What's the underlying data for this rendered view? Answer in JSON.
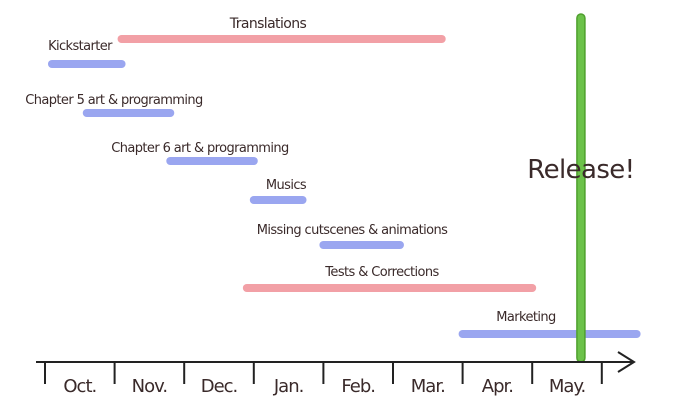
{
  "months": [
    "Oct.",
    "Nov.",
    "Dec.",
    "Jan.",
    "Feb.",
    "Mar.",
    "Apr.",
    "May."
  ],
  "milestone": {
    "label": "Release!",
    "color": "#6cc24a",
    "month_position": 7.7
  },
  "tasks": [
    {
      "label": "Translations",
      "start": 1.1,
      "end": 5.7,
      "color": "#f2a0a6"
    },
    {
      "label": "Kickstarter",
      "start": 0.1,
      "end": 1.1,
      "color": "#9aa6f0"
    },
    {
      "label": "Chapter 5 art & programming",
      "start": 0.6,
      "end": 1.8,
      "color": "#9aa6f0"
    },
    {
      "label": "Chapter 6 art & programming",
      "start": 1.8,
      "end": 3.0,
      "color": "#9aa6f0"
    },
    {
      "label": "Musics",
      "start": 3.0,
      "end": 3.7,
      "color": "#9aa6f0"
    },
    {
      "label": "Missing cutscenes & animations",
      "start": 4.0,
      "end": 5.1,
      "color": "#9aa6f0"
    },
    {
      "label": "Tests & Corrections",
      "start": 2.9,
      "end": 7.0,
      "color": "#f2a0a6"
    },
    {
      "label": "Marketing",
      "start": 6.0,
      "end": 8.5,
      "color": "#9aa6f0"
    }
  ]
}
